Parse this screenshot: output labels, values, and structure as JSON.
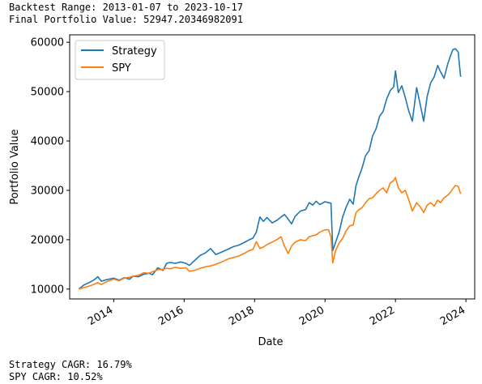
{
  "header": {
    "range_line": "Backtest Range: 2013-01-07 to 2023-10-17",
    "final_line": "Final Portfolio Value: 52947.20346982091"
  },
  "footer": {
    "strategy_cagr": "Strategy CAGR: 16.79%",
    "spy_cagr": "SPY CAGR: 10.52%"
  },
  "colors": {
    "strategy": "#1f77b4",
    "spy": "#ff7f0e"
  },
  "chart_data": {
    "type": "line",
    "title": "",
    "xlabel": "Date",
    "ylabel": "Portfolio Value",
    "xlim": [
      2012.75,
      2024.25
    ],
    "ylim": [
      8000,
      61500
    ],
    "x_ticks": [
      "2014",
      "2016",
      "2018",
      "2020",
      "2022",
      "2024"
    ],
    "y_ticks": [
      10000,
      20000,
      30000,
      40000,
      50000,
      60000
    ],
    "y_tick_labels": [
      "10000",
      "20000",
      "30000",
      "40000",
      "50000",
      "60000"
    ],
    "legend_position": "top-left",
    "grid": false,
    "series": [
      {
        "name": "Strategy",
        "color": "#1f77b4",
        "points": [
          [
            2013.01,
            10000
          ],
          [
            2013.15,
            10800
          ],
          [
            2013.3,
            11300
          ],
          [
            2013.45,
            11900
          ],
          [
            2013.55,
            12500
          ],
          [
            2013.65,
            11600
          ],
          [
            2013.8,
            11900
          ],
          [
            2014.0,
            12200
          ],
          [
            2014.15,
            11800
          ],
          [
            2014.3,
            12300
          ],
          [
            2014.45,
            12000
          ],
          [
            2014.55,
            12600
          ],
          [
            2014.7,
            12500
          ],
          [
            2014.85,
            13000
          ],
          [
            2015.0,
            13200
          ],
          [
            2015.1,
            12900
          ],
          [
            2015.25,
            14300
          ],
          [
            2015.4,
            13800
          ],
          [
            2015.5,
            15200
          ],
          [
            2015.6,
            15400
          ],
          [
            2015.75,
            15200
          ],
          [
            2015.9,
            15500
          ],
          [
            2016.05,
            15200
          ],
          [
            2016.15,
            14800
          ],
          [
            2016.3,
            15800
          ],
          [
            2016.45,
            16800
          ],
          [
            2016.6,
            17300
          ],
          [
            2016.75,
            18200
          ],
          [
            2016.9,
            17000
          ],
          [
            2017.1,
            17600
          ],
          [
            2017.25,
            18100
          ],
          [
            2017.4,
            18600
          ],
          [
            2017.55,
            18900
          ],
          [
            2017.7,
            19400
          ],
          [
            2017.85,
            20000
          ],
          [
            2017.95,
            20300
          ],
          [
            2018.05,
            21500
          ],
          [
            2018.15,
            24600
          ],
          [
            2018.25,
            23700
          ],
          [
            2018.35,
            24500
          ],
          [
            2018.5,
            23400
          ],
          [
            2018.65,
            24000
          ],
          [
            2018.75,
            24600
          ],
          [
            2018.85,
            25100
          ],
          [
            2018.95,
            24200
          ],
          [
            2019.05,
            23200
          ],
          [
            2019.15,
            24700
          ],
          [
            2019.3,
            25800
          ],
          [
            2019.45,
            26100
          ],
          [
            2019.55,
            27500
          ],
          [
            2019.65,
            27000
          ],
          [
            2019.75,
            27800
          ],
          [
            2019.85,
            27100
          ],
          [
            2020.0,
            27700
          ],
          [
            2020.1,
            27500
          ],
          [
            2020.17,
            27400
          ],
          [
            2020.22,
            17800
          ],
          [
            2020.3,
            19500
          ],
          [
            2020.4,
            21500
          ],
          [
            2020.5,
            24600
          ],
          [
            2020.6,
            26600
          ],
          [
            2020.7,
            28200
          ],
          [
            2020.8,
            27200
          ],
          [
            2020.88,
            31000
          ],
          [
            2020.95,
            32500
          ],
          [
            2021.05,
            34500
          ],
          [
            2021.15,
            37000
          ],
          [
            2021.25,
            38000
          ],
          [
            2021.35,
            41000
          ],
          [
            2021.45,
            42500
          ],
          [
            2021.55,
            45000
          ],
          [
            2021.65,
            46000
          ],
          [
            2021.75,
            48500
          ],
          [
            2021.85,
            50200
          ],
          [
            2021.95,
            51000
          ],
          [
            2022.0,
            54200
          ],
          [
            2022.08,
            49800
          ],
          [
            2022.18,
            51200
          ],
          [
            2022.28,
            48800
          ],
          [
            2022.38,
            46000
          ],
          [
            2022.48,
            44000
          ],
          [
            2022.6,
            50800
          ],
          [
            2022.7,
            47500
          ],
          [
            2022.8,
            44000
          ],
          [
            2022.9,
            49000
          ],
          [
            2023.0,
            51800
          ],
          [
            2023.1,
            53000
          ],
          [
            2023.2,
            55300
          ],
          [
            2023.28,
            54000
          ],
          [
            2023.38,
            52700
          ],
          [
            2023.48,
            55500
          ],
          [
            2023.55,
            57000
          ],
          [
            2023.63,
            58500
          ],
          [
            2023.7,
            58700
          ],
          [
            2023.78,
            58000
          ],
          [
            2023.85,
            53000
          ]
        ]
      },
      {
        "name": "SPY",
        "color": "#ff7f0e",
        "points": [
          [
            2013.01,
            10000
          ],
          [
            2013.15,
            10300
          ],
          [
            2013.3,
            10600
          ],
          [
            2013.45,
            11000
          ],
          [
            2013.55,
            11300
          ],
          [
            2013.65,
            10900
          ],
          [
            2013.8,
            11500
          ],
          [
            2014.0,
            12000
          ],
          [
            2014.15,
            11700
          ],
          [
            2014.3,
            12200
          ],
          [
            2014.45,
            12400
          ],
          [
            2014.55,
            12600
          ],
          [
            2014.7,
            12800
          ],
          [
            2014.85,
            13300
          ],
          [
            2015.0,
            13200
          ],
          [
            2015.1,
            13500
          ],
          [
            2015.25,
            13900
          ],
          [
            2015.4,
            14000
          ],
          [
            2015.5,
            14200
          ],
          [
            2015.6,
            14100
          ],
          [
            2015.75,
            14400
          ],
          [
            2015.9,
            14200
          ],
          [
            2016.05,
            14300
          ],
          [
            2016.15,
            13600
          ],
          [
            2016.3,
            13800
          ],
          [
            2016.45,
            14200
          ],
          [
            2016.6,
            14500
          ],
          [
            2016.75,
            14700
          ],
          [
            2016.9,
            15000
          ],
          [
            2017.1,
            15600
          ],
          [
            2017.25,
            16100
          ],
          [
            2017.4,
            16400
          ],
          [
            2017.55,
            16700
          ],
          [
            2017.7,
            17200
          ],
          [
            2017.85,
            17800
          ],
          [
            2017.95,
            18000
          ],
          [
            2018.05,
            19600
          ],
          [
            2018.15,
            18200
          ],
          [
            2018.25,
            18500
          ],
          [
            2018.35,
            19000
          ],
          [
            2018.5,
            19500
          ],
          [
            2018.65,
            20100
          ],
          [
            2018.75,
            20600
          ],
          [
            2018.85,
            18700
          ],
          [
            2018.95,
            17200
          ],
          [
            2019.05,
            18700
          ],
          [
            2019.15,
            19500
          ],
          [
            2019.3,
            20000
          ],
          [
            2019.45,
            19800
          ],
          [
            2019.55,
            20600
          ],
          [
            2019.65,
            20800
          ],
          [
            2019.75,
            21000
          ],
          [
            2019.85,
            21500
          ],
          [
            2020.0,
            22000
          ],
          [
            2020.1,
            22000
          ],
          [
            2020.17,
            20500
          ],
          [
            2020.22,
            15300
          ],
          [
            2020.3,
            17800
          ],
          [
            2020.4,
            19300
          ],
          [
            2020.5,
            20300
          ],
          [
            2020.6,
            21800
          ],
          [
            2020.7,
            22800
          ],
          [
            2020.8,
            23000
          ],
          [
            2020.88,
            25500
          ],
          [
            2020.95,
            26000
          ],
          [
            2021.05,
            26500
          ],
          [
            2021.15,
            27500
          ],
          [
            2021.25,
            28300
          ],
          [
            2021.35,
            28500
          ],
          [
            2021.45,
            29300
          ],
          [
            2021.55,
            30000
          ],
          [
            2021.65,
            30500
          ],
          [
            2021.75,
            29500
          ],
          [
            2021.85,
            31500
          ],
          [
            2021.95,
            32000
          ],
          [
            2022.0,
            32600
          ],
          [
            2022.08,
            30500
          ],
          [
            2022.18,
            29500
          ],
          [
            2022.28,
            30000
          ],
          [
            2022.38,
            28000
          ],
          [
            2022.48,
            25800
          ],
          [
            2022.6,
            27500
          ],
          [
            2022.7,
            26700
          ],
          [
            2022.8,
            25500
          ],
          [
            2022.9,
            27000
          ],
          [
            2023.0,
            27500
          ],
          [
            2023.1,
            26800
          ],
          [
            2023.2,
            28000
          ],
          [
            2023.28,
            27500
          ],
          [
            2023.38,
            28500
          ],
          [
            2023.48,
            29000
          ],
          [
            2023.55,
            29500
          ],
          [
            2023.63,
            30300
          ],
          [
            2023.7,
            31000
          ],
          [
            2023.78,
            30800
          ],
          [
            2023.85,
            29300
          ]
        ]
      }
    ]
  }
}
